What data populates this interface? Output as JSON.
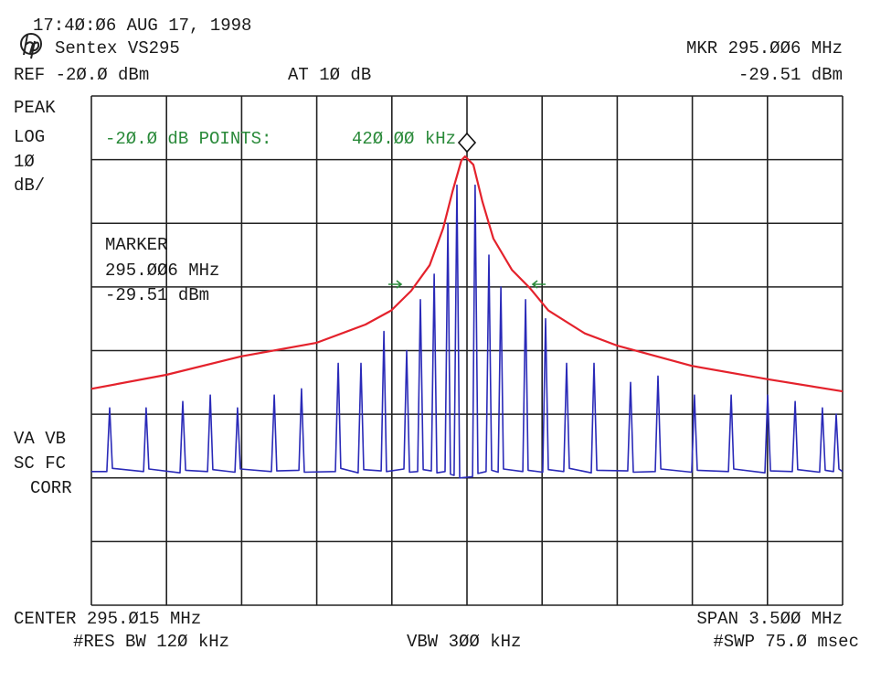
{
  "chart_data": {
    "type": "line",
    "timestamp": "17:4Ø:Ø6 AUG 17, 1998",
    "instrument": "Sentex VS295",
    "marker_freq_header": "MKR 295.ØØ6 MHz",
    "marker_level_header": "-29.51 dBm",
    "reference": "REF -2Ø.Ø dBm",
    "attenuation": "AT 1Ø dB",
    "mode_labels": [
      "PEAK",
      "LOG",
      "1Ø",
      "dB/"
    ],
    "status_labels": [
      "VA VB",
      "SC FC",
      "CORR"
    ],
    "db_points_label": "-2Ø.Ø dB POINTS:",
    "db_points_value": "42Ø.ØØ kHz",
    "marker_title": "MARKER",
    "marker_freq": "295.ØØ6 MHz",
    "marker_level": "-29.51 dBm",
    "center": "CENTER 295.Ø15 MHz",
    "span": "SPAN 3.5ØØ MHz",
    "res_bw": "#RES BW 12Ø kHz",
    "vbw": "VBW 3ØØ kHz",
    "sweep": "#SWP 75.Ø msec",
    "xlim": [
      293.265,
      296.765
    ],
    "ylim": [
      -100,
      -20
    ],
    "xticks": [
      293.265,
      293.615,
      293.965,
      294.315,
      294.665,
      295.015,
      295.365,
      295.715,
      296.065,
      296.415,
      296.765
    ],
    "yticks": [
      -100,
      -90,
      -80,
      -70,
      -60,
      -50,
      -40,
      -30,
      -20
    ],
    "grid": true,
    "series": [
      {
        "color": "#e4222c",
        "x": [
          293.265,
          293.614,
          293.963,
          294.312,
          294.542,
          294.662,
          294.755,
          294.841,
          294.904,
          294.947,
          294.989,
          295.006,
          295.045,
          295.087,
          295.138,
          295.224,
          295.309,
          295.394,
          295.564,
          295.713,
          296.062,
          296.416,
          296.765
        ],
        "values": [
          -66.0,
          -63.8,
          -60.9,
          -58.8,
          -55.9,
          -53.7,
          -50.6,
          -46.6,
          -40.8,
          -35.1,
          -30.1,
          -29.5,
          -30.8,
          -36.6,
          -42.4,
          -47.3,
          -50.2,
          -53.7,
          -57.3,
          -59.2,
          -62.4,
          -64.5,
          -66.4
        ]
      },
      {
        "color": "#2a2ab8",
        "x": [
          293.265,
          293.337,
          293.35,
          293.363,
          293.508,
          293.52,
          293.533,
          293.678,
          293.691,
          293.704,
          293.806,
          293.819,
          293.831,
          293.934,
          293.946,
          293.959,
          294.104,
          294.117,
          294.129,
          294.232,
          294.244,
          294.257,
          294.402,
          294.415,
          294.427,
          294.508,
          294.521,
          294.534,
          294.615,
          294.628,
          294.64,
          294.721,
          294.734,
          294.747,
          294.785,
          294.798,
          294.811,
          294.849,
          294.862,
          294.875,
          294.913,
          294.926,
          294.938,
          294.955,
          294.968,
          294.981,
          295.041,
          295.053,
          295.066,
          295.104,
          295.117,
          295.13,
          295.16,
          295.173,
          295.185,
          295.275,
          295.288,
          295.3,
          295.368,
          295.381,
          295.394,
          295.466,
          295.479,
          295.492,
          295.594,
          295.607,
          295.62,
          295.764,
          295.777,
          295.79,
          295.892,
          295.905,
          295.918,
          296.062,
          296.075,
          296.088,
          296.233,
          296.246,
          296.258,
          296.403,
          296.416,
          296.429,
          296.531,
          296.544,
          296.556,
          296.658,
          296.671,
          296.684,
          296.723,
          296.735,
          296.748,
          296.765
        ],
        "values": [
          -79.0,
          -79.0,
          -69.0,
          -78.5,
          -79.0,
          -69.0,
          -78.6,
          -79.2,
          -68.0,
          -78.8,
          -79.0,
          -67.0,
          -78.7,
          -79.1,
          -69.0,
          -78.6,
          -79.0,
          -67.0,
          -78.9,
          -78.8,
          -66.0,
          -79.1,
          -79.0,
          -62.0,
          -78.5,
          -79.2,
          -62.0,
          -78.7,
          -78.9,
          -57.0,
          -79.0,
          -78.6,
          -60.0,
          -79.1,
          -79.0,
          -52.0,
          -78.7,
          -78.9,
          -48.0,
          -79.2,
          -79.0,
          -40.0,
          -79.4,
          -79.6,
          -34.0,
          -80.0,
          -79.8,
          -34.0,
          -79.3,
          -79.0,
          -45.0,
          -78.8,
          -79.1,
          -50.0,
          -78.6,
          -79.0,
          -52.0,
          -78.8,
          -79.1,
          -55.0,
          -78.7,
          -79.0,
          -62.0,
          -78.5,
          -79.2,
          -62.0,
          -78.8,
          -78.9,
          -65.0,
          -79.1,
          -79.0,
          -64.0,
          -78.6,
          -79.1,
          -67.0,
          -78.8,
          -79.0,
          -67.0,
          -78.6,
          -79.2,
          -67.0,
          -78.9,
          -79.0,
          -68.0,
          -78.7,
          -79.1,
          -69.0,
          -78.8,
          -79.0,
          -70.0,
          -78.6,
          -79.0
        ]
      }
    ]
  }
}
